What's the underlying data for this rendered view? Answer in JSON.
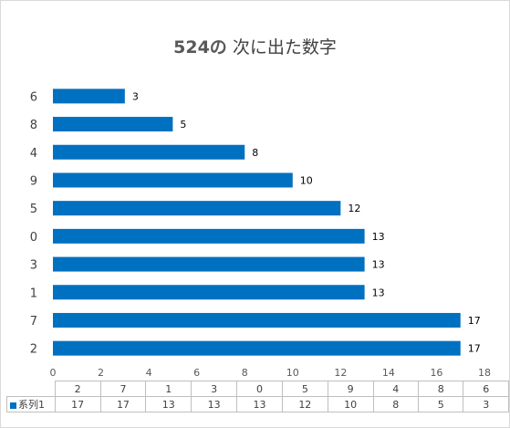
{
  "chart_data": {
    "type": "bar",
    "orientation": "horizontal",
    "title": "524の 次に出た数字",
    "title_lead": "524の",
    "title_rest": " 次に出た数字",
    "categories": [
      "2",
      "7",
      "1",
      "3",
      "0",
      "5",
      "9",
      "4",
      "8",
      "6"
    ],
    "series": [
      {
        "name": "系列1",
        "values": [
          17,
          17,
          13,
          13,
          13,
          12,
          10,
          8,
          5,
          3
        ]
      }
    ],
    "xlim": [
      0,
      18
    ],
    "x_ticks": [
      0,
      2,
      4,
      6,
      8,
      10,
      12,
      14,
      16,
      18
    ],
    "grid": false,
    "data_labels": true,
    "data_table": true,
    "bar_color": "#0070c0"
  }
}
